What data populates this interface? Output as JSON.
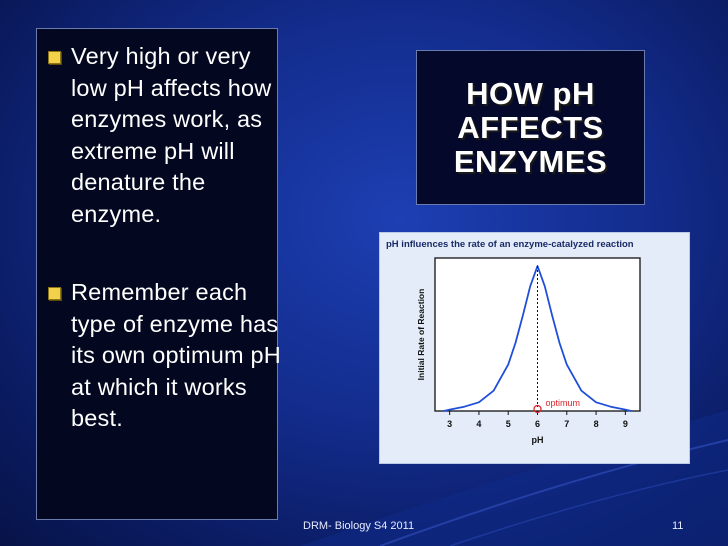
{
  "bullets": [
    {
      "text": "Very high or very low pH affects how enzymes work, as extreme pH will denature the enzyme."
    },
    {
      "text": "Remember each type of enzyme has its own optimum pH at which it works best."
    }
  ],
  "title": {
    "line1": "HOW pH",
    "line2": "AFFECTS",
    "line3": "ENZYMES"
  },
  "chart_data": {
    "type": "line",
    "title": "pH influences the rate of an enzyme-catalyzed reaction",
    "xlabel": "pH",
    "ylabel": "Initial Rate of Reaction",
    "x_ticks": [
      3,
      4,
      5,
      6,
      7,
      8,
      9
    ],
    "xlim": [
      2.5,
      9.5
    ],
    "y_ticks": [],
    "series": [
      {
        "x": [
          2.8,
          3.0,
          3.5,
          4.0,
          4.5,
          5.0,
          5.25,
          5.5,
          5.75,
          6.0,
          6.25,
          6.5,
          6.75,
          7.0,
          7.5,
          8.0,
          8.5,
          9.0,
          9.2
        ],
        "y": [
          0.0,
          0.01,
          0.03,
          0.06,
          0.14,
          0.32,
          0.47,
          0.66,
          0.86,
          1.0,
          0.86,
          0.66,
          0.47,
          0.32,
          0.14,
          0.06,
          0.03,
          0.01,
          0.0
        ],
        "color": "#1f4fd8"
      }
    ],
    "optimum_x": 6,
    "annotation": "optimum",
    "annotation_color": "#d9262b",
    "grid": false
  },
  "footer": {
    "left": "DRM- Biology S4 2011",
    "page": "11"
  },
  "colors": {
    "bullet": "#f2d24a",
    "background": "#132c8c",
    "text": "#ffffff"
  }
}
